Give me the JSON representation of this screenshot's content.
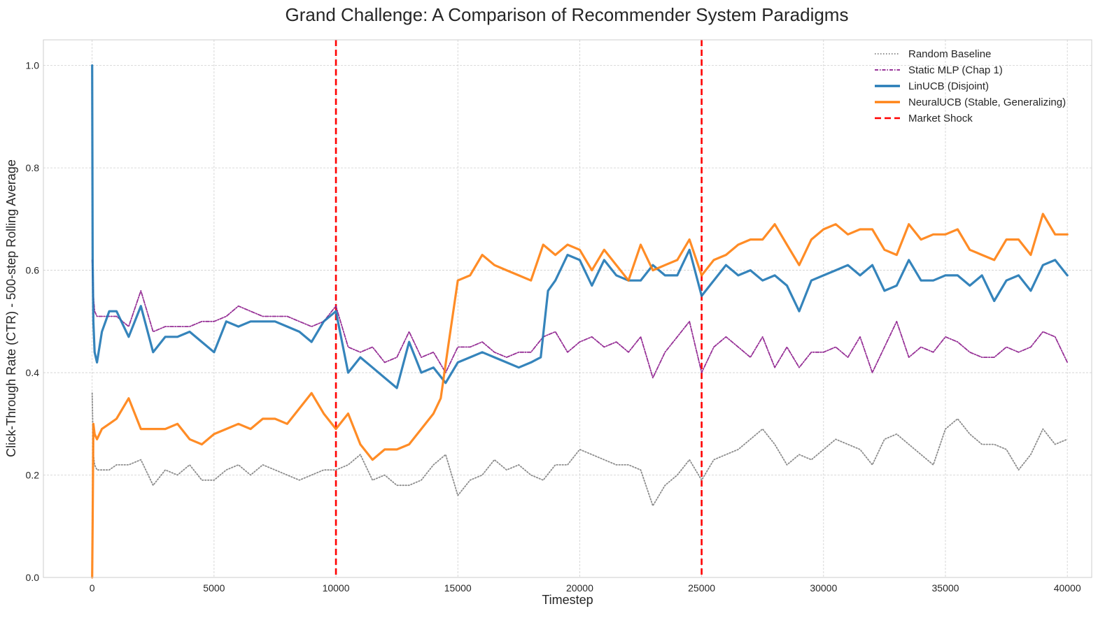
{
  "chart_data": {
    "type": "line",
    "title": "Grand Challenge: A Comparison of Recommender System Paradigms",
    "xlabel": "Timestep",
    "ylabel": "Click-Through Rate (CTR) - 500-step Rolling Average",
    "xlim": [
      -2000,
      41000
    ],
    "ylim": [
      0.0,
      1.05
    ],
    "xticks": [
      0,
      5000,
      10000,
      15000,
      20000,
      25000,
      30000,
      35000,
      40000
    ],
    "yticks": [
      0.0,
      0.2,
      0.4,
      0.6,
      0.8,
      1.0
    ],
    "xtick_labels": [
      "0",
      "5000",
      "10000",
      "15000",
      "20000",
      "25000",
      "30000",
      "35000",
      "40000"
    ],
    "ytick_labels": [
      "0.0",
      "0.2",
      "0.4",
      "0.6",
      "0.8",
      "1.0"
    ],
    "grid": true,
    "legend_position": "top-right",
    "series": [
      {
        "name": "Random Baseline",
        "color": "#7f7f7f",
        "style": "dotted",
        "x": [
          0,
          50,
          100,
          200,
          400,
          700,
          1000,
          1500,
          2000,
          2500,
          3000,
          3500,
          4000,
          4500,
          5000,
          5500,
          6000,
          6500,
          7000,
          7500,
          8000,
          8500,
          9000,
          9500,
          10000,
          10500,
          11000,
          11500,
          12000,
          12500,
          13000,
          13500,
          14000,
          14500,
          15000,
          15500,
          16000,
          16500,
          17000,
          17500,
          18000,
          18500,
          19000,
          19500,
          20000,
          20500,
          21000,
          21500,
          22000,
          22500,
          23000,
          23500,
          24000,
          24500,
          25000,
          25500,
          26000,
          26500,
          27000,
          27500,
          28000,
          28500,
          29000,
          29500,
          30000,
          30500,
          31000,
          31500,
          32000,
          32500,
          33000,
          33500,
          34000,
          34500,
          35000,
          35500,
          36000,
          36500,
          37000,
          37500,
          38000,
          38500,
          39000,
          39500,
          40000
        ],
        "values": [
          0.36,
          0.24,
          0.22,
          0.21,
          0.21,
          0.21,
          0.22,
          0.22,
          0.23,
          0.18,
          0.21,
          0.2,
          0.22,
          0.19,
          0.19,
          0.21,
          0.22,
          0.2,
          0.22,
          0.21,
          0.2,
          0.19,
          0.2,
          0.21,
          0.21,
          0.22,
          0.24,
          0.19,
          0.2,
          0.18,
          0.18,
          0.19,
          0.22,
          0.24,
          0.16,
          0.19,
          0.2,
          0.23,
          0.21,
          0.22,
          0.2,
          0.19,
          0.22,
          0.22,
          0.25,
          0.24,
          0.23,
          0.22,
          0.22,
          0.21,
          0.14,
          0.18,
          0.2,
          0.23,
          0.19,
          0.23,
          0.24,
          0.25,
          0.27,
          0.29,
          0.26,
          0.22,
          0.24,
          0.23,
          0.25,
          0.27,
          0.26,
          0.25,
          0.22,
          0.27,
          0.28,
          0.26,
          0.24,
          0.22,
          0.29,
          0.31,
          0.28,
          0.26,
          0.26,
          0.25,
          0.21,
          0.24,
          0.29,
          0.26,
          0.27
        ]
      },
      {
        "name": "Static MLP (Chap 1)",
        "color": "#8b1a8b",
        "style": "dashdot",
        "x": [
          0,
          50,
          100,
          200,
          400,
          700,
          1000,
          1500,
          2000,
          2500,
          3000,
          3500,
          4000,
          4500,
          5000,
          5500,
          6000,
          6500,
          7000,
          7500,
          8000,
          8500,
          9000,
          9500,
          10000,
          10500,
          11000,
          11500,
          12000,
          12500,
          13000,
          13500,
          14000,
          14500,
          15000,
          15500,
          16000,
          16500,
          17000,
          17500,
          18000,
          18500,
          19000,
          19500,
          20000,
          20500,
          21000,
          21500,
          22000,
          22500,
          23000,
          23500,
          24000,
          24500,
          25000,
          25500,
          26000,
          26500,
          27000,
          27500,
          28000,
          28500,
          29000,
          29500,
          30000,
          30500,
          31000,
          31500,
          32000,
          32500,
          33000,
          33500,
          34000,
          34500,
          35000,
          35500,
          36000,
          36500,
          37000,
          37500,
          38000,
          38500,
          39000,
          39500,
          40000
        ],
        "values": [
          0.62,
          0.55,
          0.52,
          0.51,
          0.51,
          0.51,
          0.51,
          0.49,
          0.56,
          0.48,
          0.49,
          0.49,
          0.49,
          0.5,
          0.5,
          0.51,
          0.53,
          0.52,
          0.51,
          0.51,
          0.51,
          0.5,
          0.49,
          0.5,
          0.53,
          0.45,
          0.44,
          0.45,
          0.42,
          0.43,
          0.48,
          0.43,
          0.44,
          0.4,
          0.45,
          0.45,
          0.46,
          0.44,
          0.43,
          0.44,
          0.44,
          0.47,
          0.48,
          0.44,
          0.46,
          0.47,
          0.45,
          0.46,
          0.44,
          0.47,
          0.39,
          0.44,
          0.47,
          0.5,
          0.4,
          0.45,
          0.47,
          0.45,
          0.43,
          0.47,
          0.41,
          0.45,
          0.41,
          0.44,
          0.44,
          0.45,
          0.43,
          0.47,
          0.4,
          0.45,
          0.5,
          0.43,
          0.45,
          0.44,
          0.47,
          0.46,
          0.44,
          0.43,
          0.43,
          0.45,
          0.44,
          0.45,
          0.48,
          0.47,
          0.42
        ]
      },
      {
        "name": "LinUCB (Disjoint)",
        "color": "#1f77b4",
        "style": "solid",
        "x": [
          0,
          20,
          50,
          100,
          200,
          400,
          700,
          1000,
          1500,
          2000,
          2500,
          3000,
          3500,
          4000,
          4500,
          5000,
          5500,
          6000,
          6500,
          7000,
          7500,
          8000,
          8500,
          9000,
          9500,
          10000,
          10500,
          11000,
          11500,
          12000,
          12500,
          13000,
          13500,
          14000,
          14500,
          15000,
          15500,
          16000,
          16500,
          17000,
          17500,
          18000,
          18400,
          18700,
          19000,
          19500,
          20000,
          20500,
          21000,
          21500,
          22000,
          22500,
          23000,
          23500,
          24000,
          24500,
          25000,
          25500,
          26000,
          26500,
          27000,
          27500,
          28000,
          28500,
          29000,
          29500,
          30000,
          30500,
          31000,
          31500,
          32000,
          32500,
          33000,
          33500,
          34000,
          34500,
          35000,
          35500,
          36000,
          36500,
          37000,
          37500,
          38000,
          38500,
          39000,
          39500,
          40000
        ],
        "values": [
          1.0,
          0.62,
          0.5,
          0.44,
          0.42,
          0.48,
          0.52,
          0.52,
          0.47,
          0.53,
          0.44,
          0.47,
          0.47,
          0.48,
          0.46,
          0.44,
          0.5,
          0.49,
          0.5,
          0.5,
          0.5,
          0.49,
          0.48,
          0.46,
          0.5,
          0.52,
          0.4,
          0.43,
          0.41,
          0.39,
          0.37,
          0.46,
          0.4,
          0.41,
          0.38,
          0.42,
          0.43,
          0.44,
          0.43,
          0.42,
          0.41,
          0.42,
          0.43,
          0.56,
          0.58,
          0.63,
          0.62,
          0.57,
          0.62,
          0.59,
          0.58,
          0.58,
          0.61,
          0.59,
          0.59,
          0.64,
          0.55,
          0.58,
          0.61,
          0.59,
          0.6,
          0.58,
          0.59,
          0.57,
          0.52,
          0.58,
          0.59,
          0.6,
          0.61,
          0.59,
          0.61,
          0.56,
          0.57,
          0.62,
          0.58,
          0.58,
          0.59,
          0.59,
          0.57,
          0.59,
          0.54,
          0.58,
          0.59,
          0.56,
          0.61,
          0.62,
          0.59
        ]
      },
      {
        "name": "NeuralUCB (Stable, Generalizing)",
        "color": "#ff7f0e",
        "style": "solid",
        "x": [
          0,
          20,
          50,
          100,
          200,
          400,
          700,
          1000,
          1500,
          2000,
          2500,
          3000,
          3500,
          4000,
          4500,
          5000,
          5500,
          6000,
          6500,
          7000,
          7500,
          8000,
          8500,
          9000,
          9500,
          10000,
          10500,
          11000,
          11500,
          12000,
          12500,
          13000,
          13500,
          14000,
          14300,
          14600,
          15000,
          15500,
          16000,
          16500,
          17000,
          17500,
          18000,
          18500,
          19000,
          19500,
          20000,
          20500,
          21000,
          21500,
          22000,
          22500,
          23000,
          23500,
          24000,
          24500,
          25000,
          25500,
          26000,
          26500,
          27000,
          27500,
          28000,
          28500,
          29000,
          29500,
          30000,
          30500,
          31000,
          31500,
          32000,
          32500,
          33000,
          33500,
          34000,
          34500,
          35000,
          35500,
          36000,
          36500,
          37000,
          37500,
          38000,
          38500,
          39000,
          39500,
          40000
        ],
        "values": [
          0.0,
          0.11,
          0.3,
          0.28,
          0.27,
          0.29,
          0.3,
          0.31,
          0.35,
          0.29,
          0.29,
          0.29,
          0.3,
          0.27,
          0.26,
          0.28,
          0.29,
          0.3,
          0.29,
          0.31,
          0.31,
          0.3,
          0.33,
          0.36,
          0.32,
          0.29,
          0.32,
          0.26,
          0.23,
          0.25,
          0.25,
          0.26,
          0.29,
          0.32,
          0.35,
          0.45,
          0.58,
          0.59,
          0.63,
          0.61,
          0.6,
          0.59,
          0.58,
          0.65,
          0.63,
          0.65,
          0.64,
          0.6,
          0.64,
          0.61,
          0.58,
          0.65,
          0.6,
          0.61,
          0.62,
          0.66,
          0.59,
          0.62,
          0.63,
          0.65,
          0.66,
          0.66,
          0.69,
          0.65,
          0.61,
          0.66,
          0.68,
          0.69,
          0.67,
          0.68,
          0.68,
          0.64,
          0.63,
          0.69,
          0.66,
          0.67,
          0.67,
          0.68,
          0.64,
          0.63,
          0.62,
          0.66,
          0.66,
          0.63,
          0.71,
          0.67,
          0.67
        ]
      }
    ],
    "vlines": [
      {
        "name": "Market Shock",
        "x": [
          10000,
          25000
        ],
        "color": "#ff0000",
        "style": "dashed"
      }
    ]
  }
}
